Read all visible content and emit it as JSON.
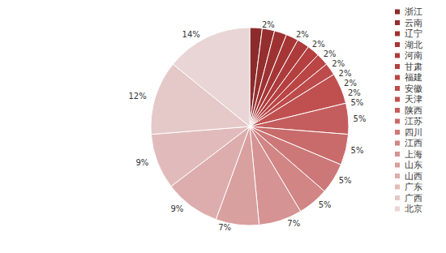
{
  "chart_data": {
    "type": "pie",
    "categories": [
      "浙江",
      "云南",
      "辽宁",
      "湖北",
      "河南",
      "甘肃",
      "福建",
      "安徽",
      "天津",
      "陕西",
      "江苏",
      "四川",
      "江西",
      "上海",
      "山东",
      "山西",
      "广东",
      "广西",
      "北京"
    ],
    "values": [
      2,
      2,
      2,
      2,
      2,
      2,
      2,
      2,
      5,
      5,
      5,
      5,
      5,
      7,
      7,
      9,
      9,
      12,
      14
    ],
    "value_labels": [
      "2%",
      "2%",
      "2%",
      "2%",
      "2%",
      "2%",
      "2%",
      "2%",
      "5%",
      "5%",
      "5%",
      "5%",
      "5%",
      "7%",
      "7%",
      "9%",
      "9%",
      "12%",
      "14%"
    ],
    "colors": [
      "#8b2b2b",
      "#952e2e",
      "#9e3232",
      "#a63636",
      "#ad3b3b",
      "#b44040",
      "#b94545",
      "#be4b4b",
      "#c05050",
      "#c45d5d",
      "#c96b6b",
      "#cd7878",
      "#d18585",
      "#d59393",
      "#d9a0a0",
      "#ddadad",
      "#e1bbbb",
      "#e5c8c8",
      "#e9d5d5"
    ],
    "data_labels": true,
    "legend": "right"
  }
}
